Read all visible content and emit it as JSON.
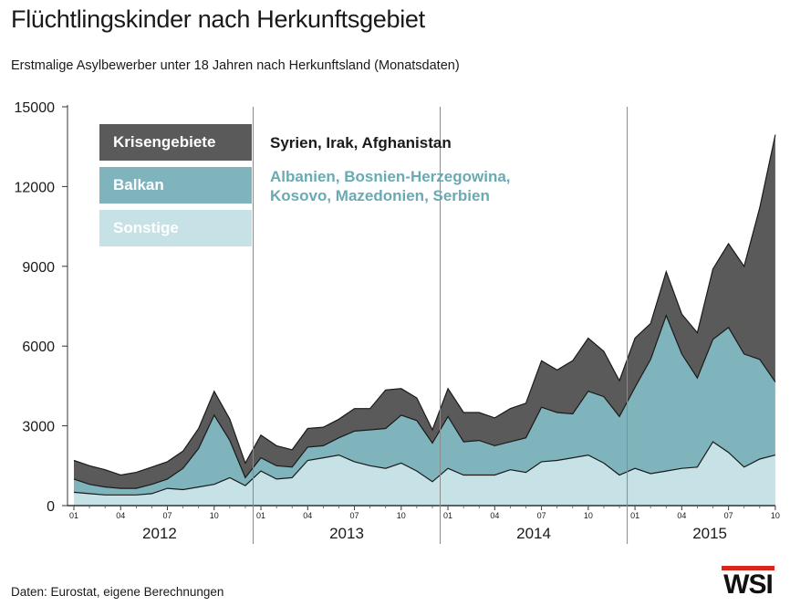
{
  "title": "Flüchtlingskinder nach Herkunftsgebiet",
  "subtitle": "Erstmalige Asylbewerber unter 18 Jahren nach Herkunftsland (Monatsdaten)",
  "source": "Daten: Eurostat, eigene Berechnungen",
  "logo": "WSI",
  "colors": {
    "krisengebiete": "#5a5a5a",
    "balkan": "#7fb4bd",
    "sonstige": "#c6e2e6",
    "balkan_text": "#6aaab4",
    "logo_red": "#d9261c"
  },
  "legend": [
    {
      "label": "Krisengebiete",
      "description": "Syrien, Irak, Afghanistan"
    },
    {
      "label": "Balkan",
      "description": "Albanien, Bosnien-Herzegowina, Kosovo, Mazedonien, Serbien"
    },
    {
      "label": "Sonstige",
      "description": ""
    }
  ],
  "chart_data": {
    "type": "area",
    "stacked": true,
    "title": "Flüchtlingskinder nach Herkunftsgebiet",
    "subtitle": "Erstmalige Asylbewerber unter 18 Jahren nach Herkunftsland (Monatsdaten)",
    "ylim": [
      0,
      15000
    ],
    "yticks": [
      0,
      3000,
      6000,
      9000,
      12000,
      15000
    ],
    "ytick_labels": [
      "0",
      "3000",
      "6000",
      "9000",
      "12000",
      "15000"
    ],
    "years": [
      "2012",
      "2013",
      "2014",
      "2015"
    ],
    "month_ticks": [
      "01",
      "04",
      "07",
      "10"
    ],
    "x": [
      "2012-01",
      "2012-02",
      "2012-03",
      "2012-04",
      "2012-05",
      "2012-06",
      "2012-07",
      "2012-08",
      "2012-09",
      "2012-10",
      "2012-11",
      "2012-12",
      "2013-01",
      "2013-02",
      "2013-03",
      "2013-04",
      "2013-05",
      "2013-06",
      "2013-07",
      "2013-08",
      "2013-09",
      "2013-10",
      "2013-11",
      "2013-12",
      "2014-01",
      "2014-02",
      "2014-03",
      "2014-04",
      "2014-05",
      "2014-06",
      "2014-07",
      "2014-08",
      "2014-09",
      "2014-10",
      "2014-11",
      "2014-12",
      "2015-01",
      "2015-02",
      "2015-03",
      "2015-04",
      "2015-05",
      "2015-06",
      "2015-07",
      "2015-08",
      "2015-09",
      "2015-10"
    ],
    "grid": "vertical year separators",
    "legend_position": "top-left",
    "series": [
      {
        "name": "Sonstige",
        "values": [
          500,
          450,
          400,
          400,
          400,
          450,
          650,
          600,
          700,
          800,
          1050,
          750,
          1300,
          1000,
          1050,
          1700,
          1800,
          1900,
          1650,
          1500,
          1400,
          1600,
          1300,
          900,
          1400,
          1150,
          1150,
          1150,
          1350,
          1250,
          1650,
          1700,
          1800,
          1900,
          1600,
          1150,
          1400,
          1200,
          1300,
          1400,
          1450,
          2400,
          2000,
          1450,
          1750,
          1900
        ]
      },
      {
        "name": "Balkan",
        "values": [
          500,
          350,
          300,
          250,
          250,
          350,
          350,
          800,
          1450,
          2600,
          1400,
          300,
          500,
          500,
          400,
          500,
          450,
          650,
          1150,
          1350,
          1500,
          1800,
          1900,
          1450,
          1950,
          1250,
          1300,
          1100,
          1050,
          1300,
          2050,
          1800,
          1650,
          2400,
          2500,
          2200,
          3050,
          4300,
          5850,
          4300,
          3350,
          3850,
          4700,
          4250,
          3750,
          2750
        ]
      },
      {
        "name": "Krisengebiete",
        "values": [
          700,
          700,
          650,
          500,
          600,
          650,
          650,
          650,
          750,
          900,
          800,
          550,
          850,
          750,
          650,
          700,
          700,
          700,
          850,
          800,
          1450,
          1000,
          850,
          500,
          1050,
          1100,
          1050,
          1050,
          1250,
          1300,
          1750,
          1600,
          2000,
          2000,
          1700,
          1350,
          1850,
          1350,
          1650,
          1500,
          1700,
          2650,
          3150,
          3300,
          5700,
          9300
        ]
      }
    ]
  }
}
